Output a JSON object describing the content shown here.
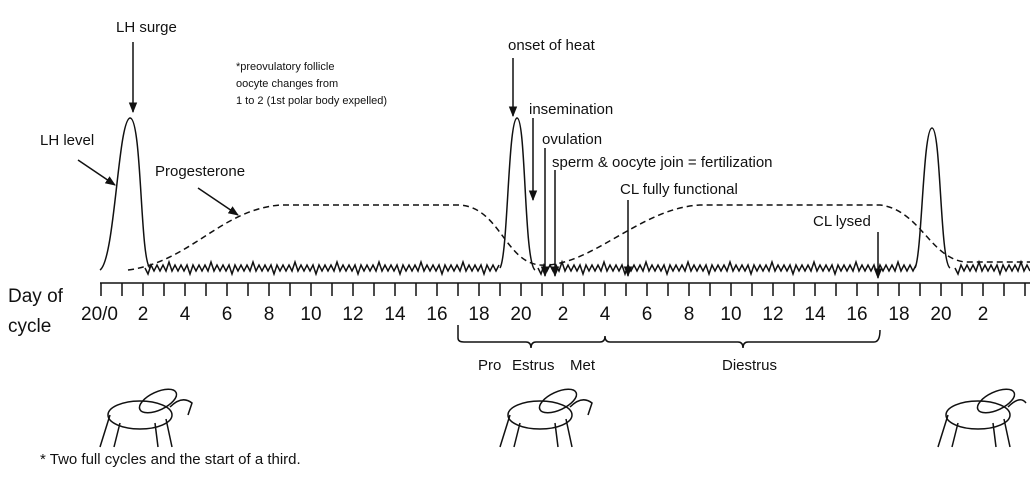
{
  "annotations": {
    "lh_surge": "LH surge",
    "note_line_1": "*preovulatory follicle",
    "note_line_2": "oocyte changes from",
    "note_line_3": "1  to  2  (1st polar body expelled)",
    "lh_level": "LH level",
    "progesterone": "Progesterone",
    "onset_of_heat": "onset of heat",
    "insemination": "insemination",
    "ovulation": "ovulation",
    "fertilization": "sperm & oocyte join = fertilization",
    "cl_functional": "CL fully functional",
    "cl_lysed": "CL lysed"
  },
  "axis": {
    "title_line_1": "Day of",
    "title_line_2": "cycle",
    "day_labels": [
      "20/0",
      "2",
      "4",
      "6",
      "8",
      "10",
      "12",
      "14",
      "16",
      "18",
      "20",
      "2",
      "4",
      "6",
      "8",
      "10",
      "12",
      "14",
      "16",
      "18",
      "20",
      "2"
    ]
  },
  "phases": {
    "pro": "Pro",
    "estrus": "Estrus",
    "met": "Met",
    "diestrus": "Diestrus"
  },
  "footnote": "* Two full cycles and the start of a third."
}
